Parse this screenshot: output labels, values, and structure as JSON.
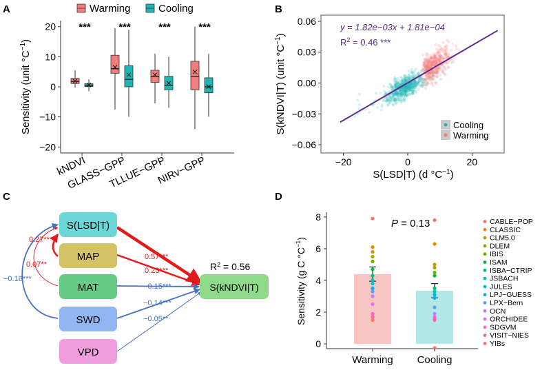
{
  "colors": {
    "warming": "#f47c7c",
    "warming_light": "#f8c6c2",
    "cooling": "#1fb5b5",
    "cooling_light": "#b2e8e8",
    "red_arrow": "#e31a1c",
    "blue_arrow": "#4572c4",
    "fit_line": "#5b2c8f"
  },
  "chart_data": [
    {
      "panel": "A",
      "panel_label": "A",
      "type": "box",
      "ylabel": "Sensitivity (unit °C",
      "ylabel_sup": "−1",
      "ylabel_close": ")",
      "ylim": [
        -22,
        22
      ],
      "yticks": [
        -20,
        -10,
        0,
        10,
        20
      ],
      "ytick_labels": [
        "−20",
        "−10",
        "0",
        "10",
        "20"
      ],
      "legend": [
        "Warming",
        "Cooling"
      ],
      "categories": [
        "kNDVI",
        "GLASS−GPP",
        "TLLUE−GPP",
        "NIRv−GPP"
      ],
      "significance": [
        "***",
        "***",
        "***",
        "***"
      ],
      "series": [
        {
          "name": "Warming",
          "boxes": [
            {
              "whislo": -0.3,
              "q1": 1.1,
              "med": 1.8,
              "q3": 2.8,
              "whishi": 5.5,
              "mean": 1.9
            },
            {
              "whislo": -7.5,
              "q1": 4.5,
              "med": 6.0,
              "q3": 10.5,
              "whishi": 19.5,
              "mean": 6.5
            },
            {
              "whislo": -5.5,
              "q1": 1.5,
              "med": 3.5,
              "q3": 5.5,
              "whishi": 11.0,
              "mean": 4.0
            },
            {
              "whislo": -14.0,
              "q1": -1.0,
              "med": 3.5,
              "q3": 8.5,
              "whishi": 20.0,
              "mean": 5.0
            }
          ]
        },
        {
          "name": "Cooling",
          "boxes": [
            {
              "whislo": -1.5,
              "q1": 0.1,
              "med": 0.5,
              "q3": 1.0,
              "whishi": 2.5,
              "mean": 0.6
            },
            {
              "whislo": -10.0,
              "q1": 0.0,
              "med": 2.5,
              "q3": 7.0,
              "whishi": 19.0,
              "mean": 4.0
            },
            {
              "whislo": -7.0,
              "q1": -1.0,
              "med": 0.5,
              "q3": 3.5,
              "whishi": 10.0,
              "mean": 1.2
            },
            {
              "whislo": -10.0,
              "q1": -2.0,
              "med": 0.0,
              "q3": 3.0,
              "whishi": 11.0,
              "mean": 0.0
            }
          ]
        }
      ]
    },
    {
      "panel": "B",
      "panel_label": "B",
      "type": "scatter",
      "xlabel": "S(LSD|T) (d  °C",
      "xlabel_sup": "−1",
      "xlabel_close": ")",
      "ylabel": "S(kNDVI|T) (unit  °C",
      "ylabel_sup": "−1",
      "ylabel_close": ")",
      "xlim": [
        -27,
        30
      ],
      "ylim": [
        -0.068,
        0.066
      ],
      "xticks": [
        -20,
        0,
        20
      ],
      "xtick_labels": [
        "−20",
        "0",
        "20"
      ],
      "yticks": [
        -0.06,
        -0.03,
        0,
        0.03,
        0.06
      ],
      "ytick_labels": [
        "−0.06",
        "−0.03",
        "0.00",
        "0.03",
        "0.06"
      ],
      "equation": "y = 1.82e−03x + 1.81e−04",
      "r2_prefix": "R",
      "r2_sup": "2",
      "r2_value": " = 0.46 ***",
      "fit": {
        "slope": 0.00182,
        "intercept": 0.000181,
        "x_range": [
          -21,
          28
        ]
      },
      "legend": [
        "Cooling",
        "Warming"
      ]
    },
    {
      "panel": "C",
      "panel_label": "C",
      "type": "path-diagram",
      "nodes": [
        "S(LSD|T)",
        "MAP",
        "MAT",
        "SWD",
        "VPD",
        "S(kNDVI|T)"
      ],
      "r2_prefix": "R",
      "r2_sup": "2",
      "r2_value": " = 0.56",
      "paths": [
        {
          "from": "S(LSD|T)",
          "to": "S(kNDVI|T)",
          "coef": "0.57***",
          "sign": "positive"
        },
        {
          "from": "MAP",
          "to": "S(kNDVI|T)",
          "coef": "0.23***",
          "sign": "positive"
        },
        {
          "from": "MAT",
          "to": "S(kNDVI|T)",
          "coef": "−0.15***",
          "sign": "negative"
        },
        {
          "from": "SWD",
          "to": "S(kNDVI|T)",
          "coef": "−0.14***",
          "sign": "negative"
        },
        {
          "from": "VPD",
          "to": "S(kNDVI|T)",
          "coef": "−0.05**",
          "sign": "negative"
        },
        {
          "from": "MAP",
          "to": "S(LSD|T)",
          "coef": "0.27***",
          "sign": "positive"
        },
        {
          "from": "MAT",
          "to": "S(LSD|T)",
          "coef": "0.07**",
          "sign": "positive"
        },
        {
          "from": "SWD",
          "to": "S(LSD|T)",
          "coef": "−0.18***",
          "sign": "negative"
        }
      ]
    },
    {
      "panel": "D",
      "panel_label": "D",
      "type": "bar",
      "ylabel": "Sensitivity (g C °C",
      "ylabel_sup": "−1",
      "ylabel_close": ")",
      "ylim": [
        -0.3,
        8.3
      ],
      "yticks": [
        0,
        2,
        4,
        6,
        8
      ],
      "ytick_labels": [
        "0",
        "2",
        "4",
        "6",
        "8"
      ],
      "categories": [
        "Warming",
        "Cooling"
      ],
      "values": [
        4.4,
        3.35
      ],
      "errors": [
        0.45,
        0.45
      ],
      "p_label": "P",
      "p_value": " = 0.13",
      "models": [
        "CABLE−POP",
        "CLASSIC",
        "CLM5.0",
        "DLEM",
        "IBIS",
        "ISAM",
        "ISBA−CTRIP",
        "JSBACH",
        "JULES",
        "LPJ−GUESS",
        "LPX−Bern",
        "OCN",
        "ORCHIDEE",
        "SDGVM",
        "VISIT−NIES",
        "YIBs"
      ],
      "model_colors": [
        "#f8766d",
        "#e58700",
        "#c99800",
        "#a3a500",
        "#6bb100",
        "#00ba38",
        "#00bf7d",
        "#00c0af",
        "#00bcd8",
        "#00b0f6",
        "#619cff",
        "#b983ff",
        "#e76bf3",
        "#fd61d1",
        "#ff67a4",
        "#f8766d"
      ],
      "model_points": {
        "Warming": [
          7.9,
          6.1,
          5.8,
          5.5,
          5.2,
          4.7,
          4.3,
          4.0,
          3.8,
          3.5,
          3.3,
          3.0,
          2.5,
          1.9,
          1.7,
          1.5
        ],
        "Cooling": [
          7.8,
          6.3,
          5.0,
          4.8,
          4.5,
          4.3,
          3.5,
          3.3,
          3.1,
          2.9,
          2.3,
          1.9,
          1.7,
          1.6,
          1.5,
          -0.25
        ]
      }
    }
  ]
}
